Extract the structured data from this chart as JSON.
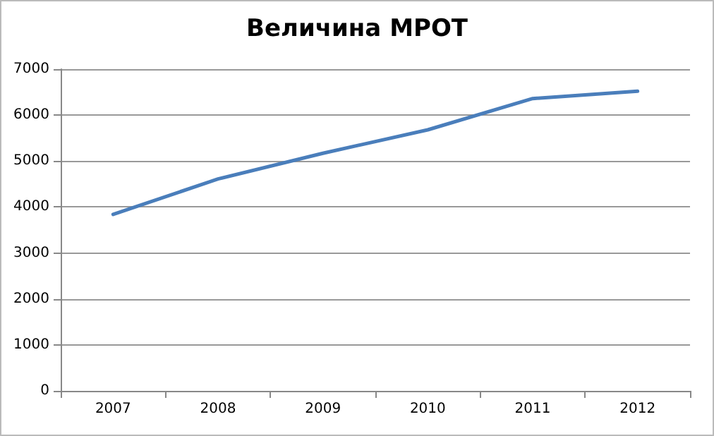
{
  "chart_data": {
    "type": "line",
    "title": "Величина МРОТ",
    "categories": [
      "2007",
      "2008",
      "2009",
      "2010",
      "2011",
      "2012"
    ],
    "series": [
      {
        "color": "#4a7ebb",
        "values": [
          3840,
          4610,
          5170,
          5680,
          6360,
          6520
        ]
      }
    ],
    "ylim": [
      0,
      7000
    ],
    "yticks": [
      0,
      1000,
      2000,
      3000,
      4000,
      5000,
      6000,
      7000
    ],
    "grid": "y",
    "marker": "none",
    "line_style": "solid"
  }
}
